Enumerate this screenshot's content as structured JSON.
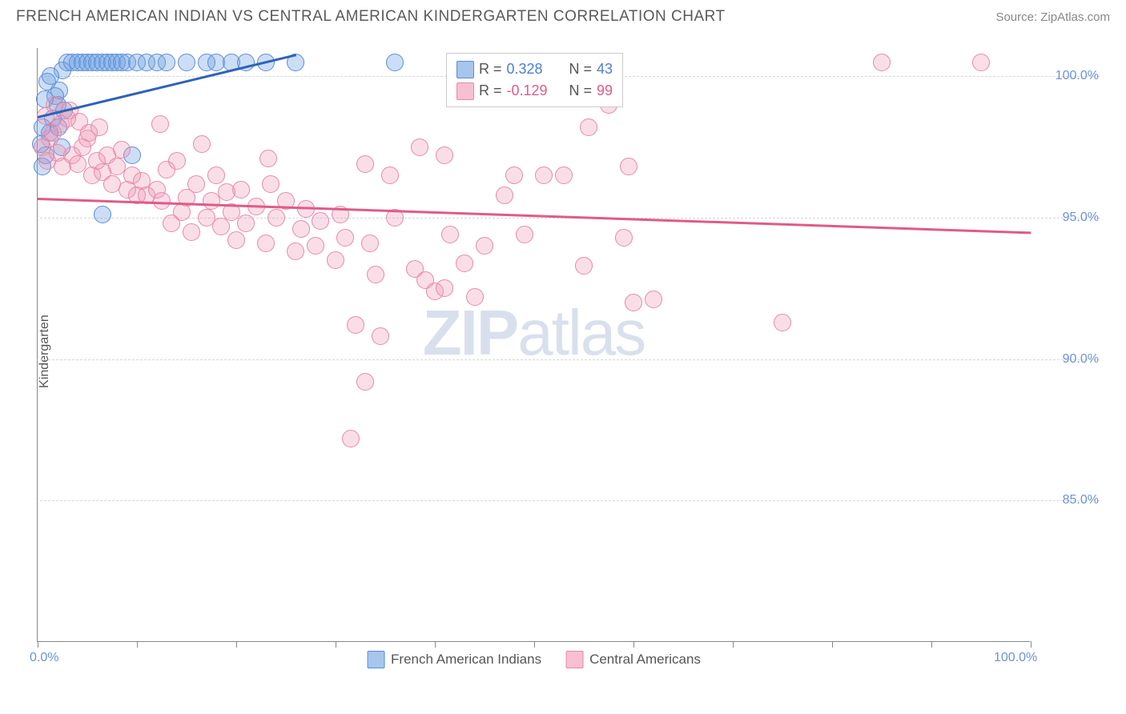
{
  "header": {
    "title": "FRENCH AMERICAN INDIAN VS CENTRAL AMERICAN KINDERGARTEN CORRELATION CHART",
    "source_label": "Source: ZipAtlas.com"
  },
  "y_axis_title": "Kindergarten",
  "watermark": {
    "zip": "ZIP",
    "atlas": "atlas"
  },
  "chart": {
    "type": "scatter",
    "background_color": "#ffffff",
    "grid_color": "#d8d8d8",
    "axis_color": "#888888",
    "xlim": [
      0,
      100
    ],
    "ylim": [
      80,
      101
    ],
    "x_ticks": [
      0,
      10,
      20,
      30,
      40,
      50,
      60,
      70,
      80,
      90,
      100
    ],
    "x_labels": [
      {
        "value": 0,
        "label": "0.0%"
      },
      {
        "value": 100,
        "label": "100.0%"
      }
    ],
    "y_labels": [
      {
        "value": 85,
        "label": "85.0%"
      },
      {
        "value": 90,
        "label": "90.0%"
      },
      {
        "value": 95,
        "label": "95.0%"
      },
      {
        "value": 100,
        "label": "100.0%"
      }
    ],
    "label_color": "#6b93d6",
    "label_fontsize": 16,
    "marker_radius": 11,
    "marker_stroke_width": 1.5,
    "series": [
      {
        "name": "French American Indians",
        "fill_color": "rgba(110,160,225,0.35)",
        "stroke_color": "#5b8dd6",
        "swatch_fill": "#a6c6ee",
        "swatch_border": "#5b8dd6",
        "R": "0.328",
        "N": "43",
        "R_color": "#4a7fd6",
        "trend": {
          "x1": 0,
          "y1": 98.6,
          "x2": 26,
          "y2": 100.8,
          "color": "#2f62b8"
        },
        "points": [
          [
            0.5,
            96.8
          ],
          [
            0.8,
            97.2
          ],
          [
            1.2,
            98.0
          ],
          [
            1.5,
            98.5
          ],
          [
            2.0,
            99.0
          ],
          [
            2.2,
            99.5
          ],
          [
            2.5,
            100.2
          ],
          [
            3.0,
            100.5
          ],
          [
            3.5,
            100.5
          ],
          [
            4.0,
            100.5
          ],
          [
            4.5,
            100.5
          ],
          [
            5.0,
            100.5
          ],
          [
            5.5,
            100.5
          ],
          [
            6.0,
            100.5
          ],
          [
            6.5,
            100.5
          ],
          [
            7.0,
            100.5
          ],
          [
            7.5,
            100.5
          ],
          [
            8.0,
            100.5
          ],
          [
            8.5,
            100.5
          ],
          [
            9.0,
            100.5
          ],
          [
            10.0,
            100.5
          ],
          [
            11.0,
            100.5
          ],
          [
            12.0,
            100.5
          ],
          [
            13.0,
            100.5
          ],
          [
            15.0,
            100.5
          ],
          [
            17.0,
            100.5
          ],
          [
            18.0,
            100.5
          ],
          [
            19.5,
            100.5
          ],
          [
            21.0,
            100.5
          ],
          [
            23.0,
            100.5
          ],
          [
            26.0,
            100.5
          ],
          [
            36.0,
            100.5
          ],
          [
            1.0,
            99.8
          ],
          [
            1.3,
            100.0
          ],
          [
            1.8,
            99.3
          ],
          [
            2.1,
            98.2
          ],
          [
            2.4,
            97.5
          ],
          [
            2.7,
            98.8
          ],
          [
            9.5,
            97.2
          ],
          [
            6.5,
            95.1
          ],
          [
            0.5,
            98.2
          ],
          [
            0.3,
            97.6
          ],
          [
            0.7,
            99.2
          ]
        ]
      },
      {
        "name": "Central Americans",
        "fill_color": "rgba(240,145,175,0.30)",
        "stroke_color": "#e889a9",
        "swatch_fill": "#f7c0d1",
        "swatch_border": "#e889a9",
        "R": "-0.129",
        "N": "99",
        "R_color": "#e05a8a",
        "trend": {
          "x1": 0,
          "y1": 95.7,
          "x2": 100,
          "y2": 94.5,
          "color": "#e05a8a"
        },
        "points": [
          [
            0.5,
            97.5
          ],
          [
            1.0,
            97.0
          ],
          [
            1.5,
            98.0
          ],
          [
            2.0,
            97.3
          ],
          [
            2.5,
            96.8
          ],
          [
            3.0,
            98.5
          ],
          [
            3.5,
            97.2
          ],
          [
            4.0,
            96.9
          ],
          [
            4.5,
            97.5
          ],
          [
            5.0,
            97.8
          ],
          [
            5.5,
            96.5
          ],
          [
            6.0,
            97.0
          ],
          [
            6.5,
            96.6
          ],
          [
            7.0,
            97.2
          ],
          [
            7.5,
            96.2
          ],
          [
            8.0,
            96.8
          ],
          [
            8.5,
            97.4
          ],
          [
            9.0,
            96.0
          ],
          [
            9.5,
            96.5
          ],
          [
            10.0,
            95.8
          ],
          [
            10.5,
            96.3
          ],
          [
            11.0,
            95.8
          ],
          [
            12.0,
            96.0
          ],
          [
            12.5,
            95.6
          ],
          [
            13.0,
            96.7
          ],
          [
            13.5,
            94.8
          ],
          [
            14.0,
            97.0
          ],
          [
            14.5,
            95.2
          ],
          [
            15.0,
            95.7
          ],
          [
            15.5,
            94.5
          ],
          [
            16.0,
            96.2
          ],
          [
            17.0,
            95.0
          ],
          [
            17.5,
            95.6
          ],
          [
            18.0,
            96.5
          ],
          [
            18.5,
            94.7
          ],
          [
            19.0,
            95.9
          ],
          [
            19.5,
            95.2
          ],
          [
            20.0,
            94.2
          ],
          [
            20.5,
            96.0
          ],
          [
            21.0,
            94.8
          ],
          [
            22.0,
            95.4
          ],
          [
            23.0,
            94.1
          ],
          [
            23.5,
            96.2
          ],
          [
            24.0,
            95.0
          ],
          [
            25.0,
            95.6
          ],
          [
            26.0,
            93.8
          ],
          [
            26.5,
            94.6
          ],
          [
            27.0,
            95.3
          ],
          [
            28.0,
            94.0
          ],
          [
            28.5,
            94.9
          ],
          [
            30.0,
            93.5
          ],
          [
            30.5,
            95.1
          ],
          [
            31.0,
            94.3
          ],
          [
            32.0,
            91.2
          ],
          [
            33.0,
            96.9
          ],
          [
            33.5,
            94.1
          ],
          [
            34.0,
            93.0
          ],
          [
            34.5,
            90.8
          ],
          [
            35.5,
            96.5
          ],
          [
            36.0,
            95.0
          ],
          [
            38.0,
            93.2
          ],
          [
            39.0,
            92.8
          ],
          [
            40.0,
            92.4
          ],
          [
            41.0,
            92.5
          ],
          [
            41.5,
            94.4
          ],
          [
            43.0,
            93.4
          ],
          [
            44.0,
            92.2
          ],
          [
            45.0,
            94.0
          ],
          [
            47.0,
            95.8
          ],
          [
            48.0,
            96.5
          ],
          [
            49.0,
            94.4
          ],
          [
            51.0,
            96.5
          ],
          [
            53.0,
            96.5
          ],
          [
            55.0,
            93.3
          ],
          [
            57.0,
            100.4
          ],
          [
            59.0,
            94.3
          ],
          [
            59.5,
            96.8
          ],
          [
            60.0,
            92.0
          ],
          [
            62.0,
            92.1
          ],
          [
            75.0,
            91.3
          ],
          [
            55.5,
            98.2
          ],
          [
            31.5,
            87.2
          ],
          [
            33.0,
            89.2
          ],
          [
            57.5,
            99.0
          ],
          [
            85.0,
            100.5
          ],
          [
            95.0,
            100.5
          ],
          [
            1.7,
            99.0
          ],
          [
            2.3,
            98.3
          ],
          [
            1.2,
            97.8
          ],
          [
            0.8,
            98.6
          ],
          [
            3.2,
            98.8
          ],
          [
            4.2,
            98.4
          ],
          [
            5.2,
            98.0
          ],
          [
            6.2,
            98.2
          ],
          [
            23.2,
            97.1
          ],
          [
            38.5,
            97.5
          ],
          [
            41.0,
            97.2
          ],
          [
            12.3,
            98.3
          ],
          [
            16.5,
            97.6
          ]
        ]
      }
    ],
    "stats_legend": {
      "text_color": "#555555",
      "R_label": "R  =  ",
      "N_label": "N  =  "
    }
  }
}
